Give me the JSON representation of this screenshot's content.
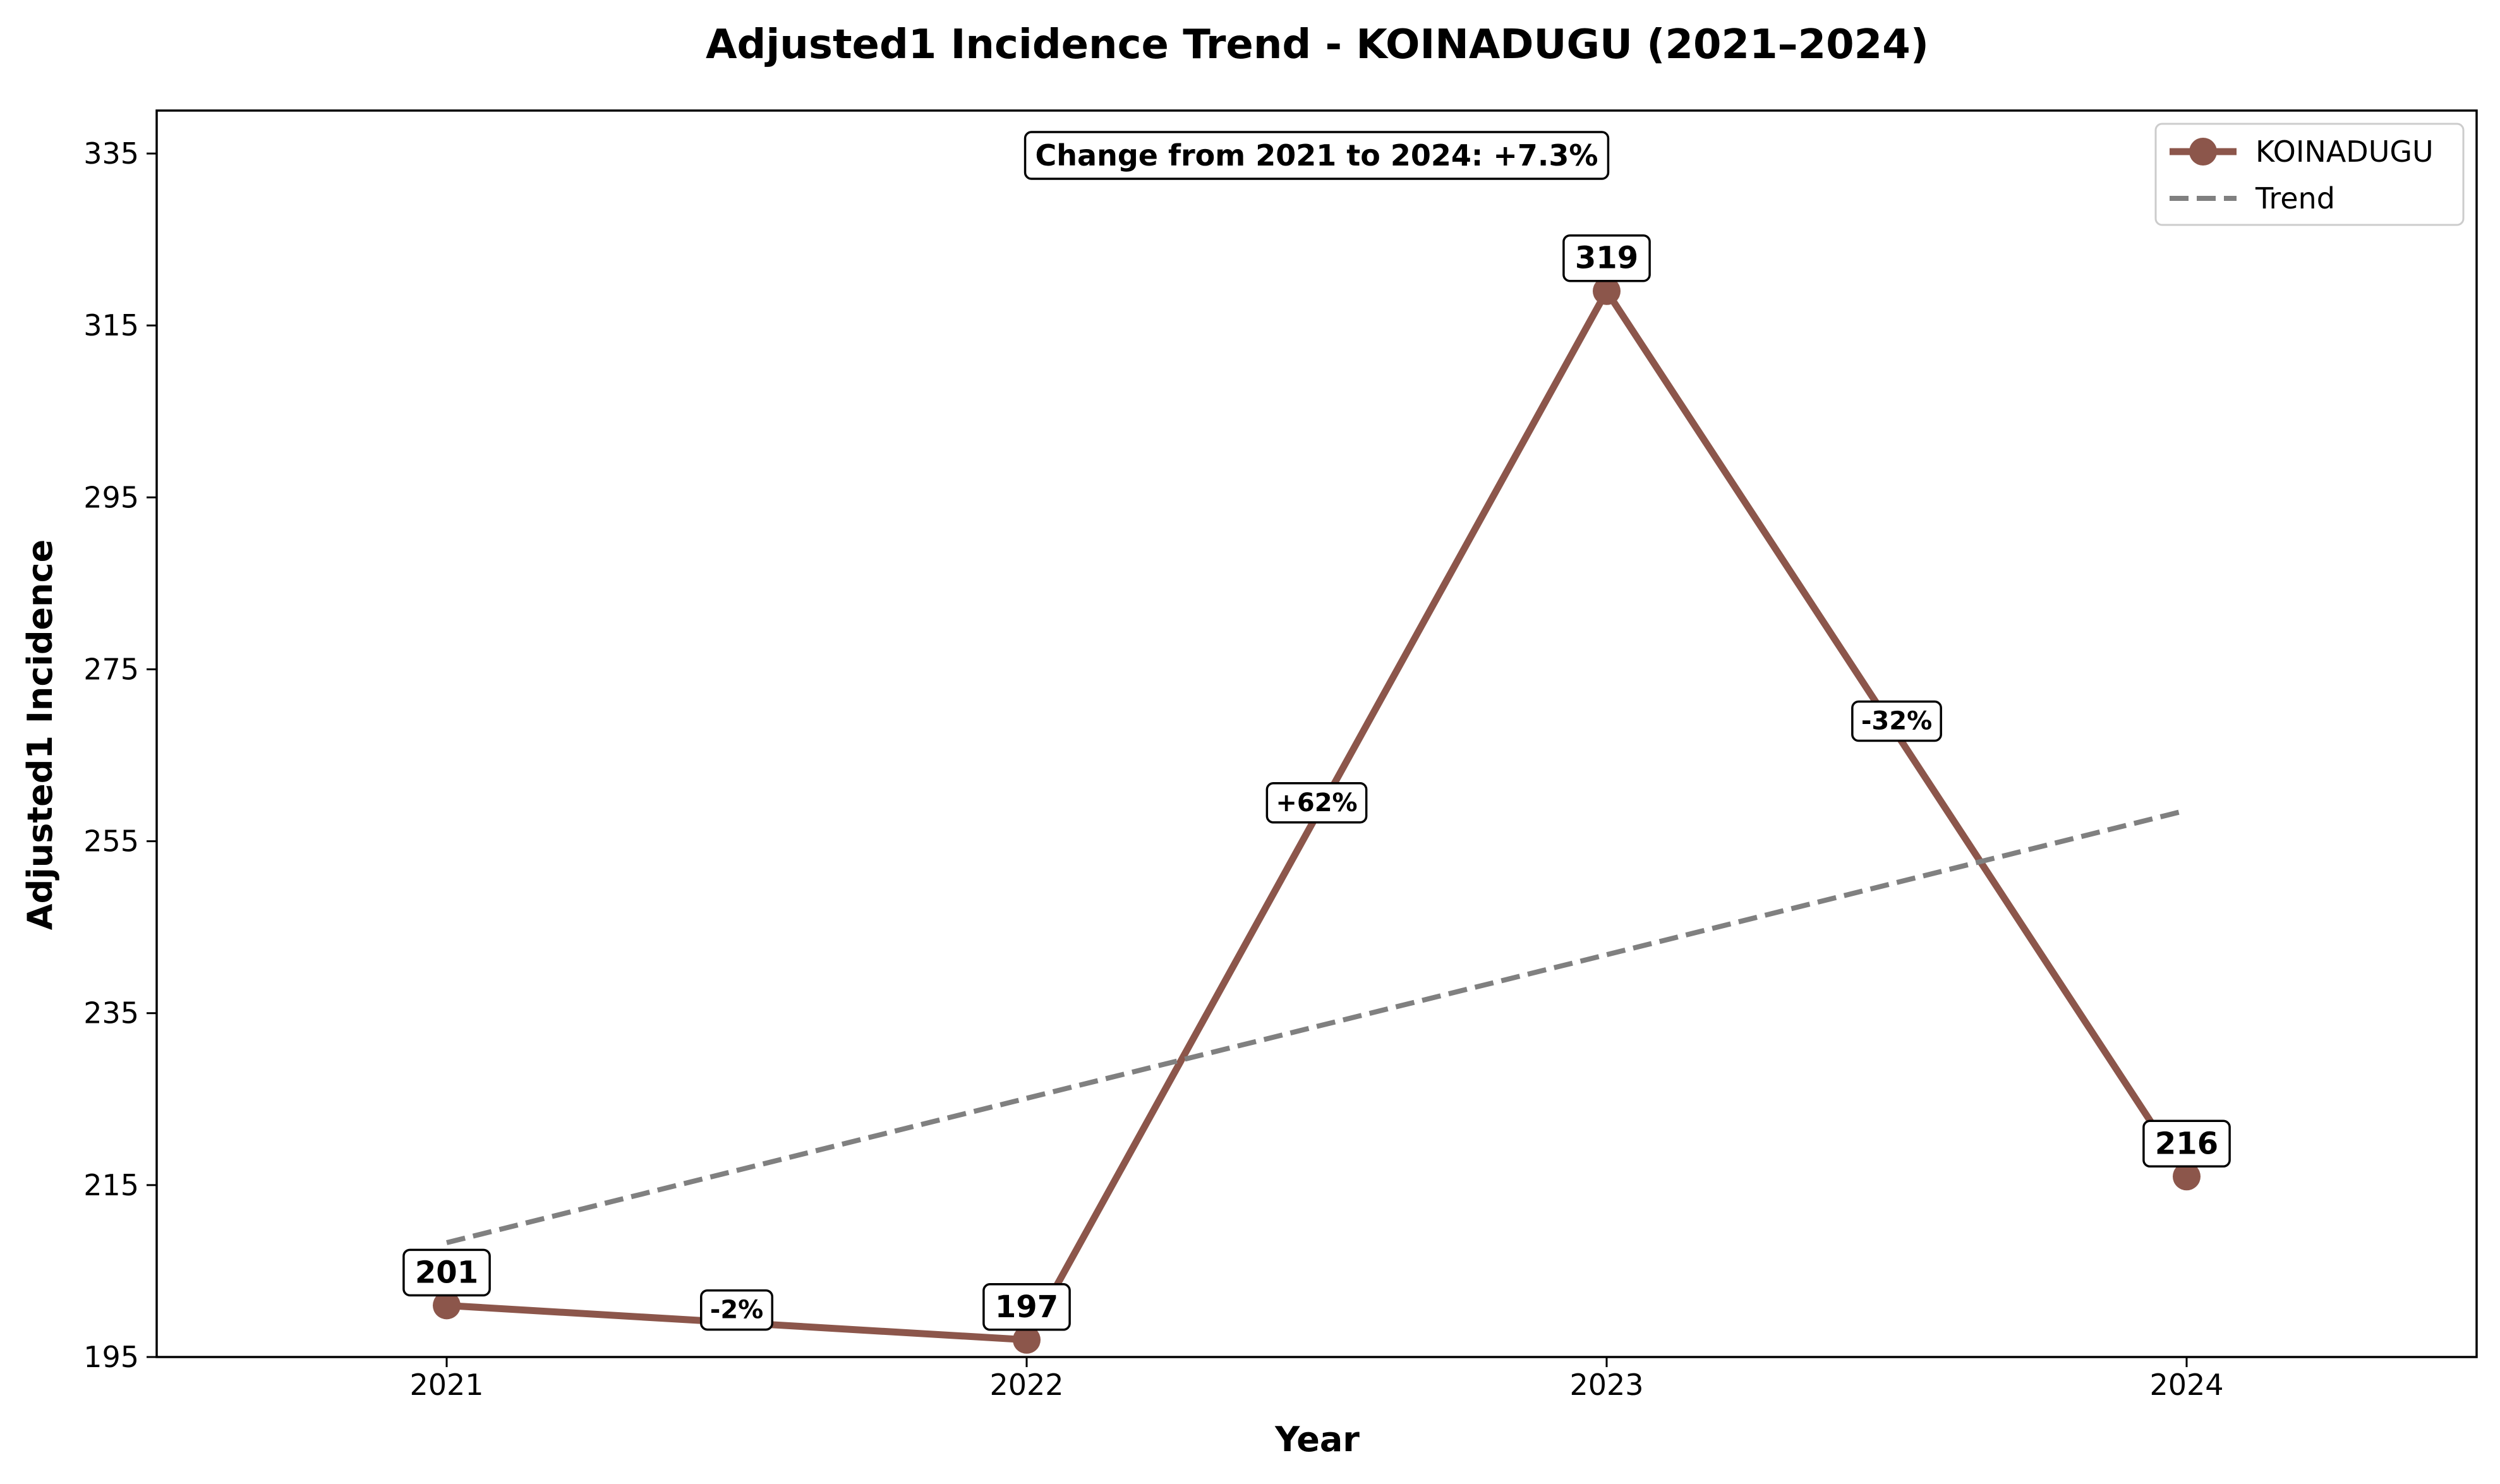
{
  "chart_data": {
    "type": "line",
    "title": "Adjusted1 Incidence Trend - KOINADUGU (2021–2024)",
    "xlabel": "Year",
    "ylabel": "Adjusted1 Incidence",
    "x": [
      "2021",
      "2022",
      "2023",
      "2024"
    ],
    "ylim": [
      195,
      340
    ],
    "yticks": [
      195,
      215,
      235,
      255,
      275,
      295,
      315,
      335
    ],
    "grid": false,
    "legend_position": "top-right",
    "series": [
      {
        "name": "KOINADUGU",
        "values": [
          201,
          197,
          319,
          216
        ],
        "color": "#8c564b",
        "style": "solid",
        "marker": "circle",
        "data_labels": [
          "201",
          "197",
          "319",
          "216"
        ]
      },
      {
        "name": "Trend",
        "values": [
          208.3,
          225.1,
          241.8,
          258.6
        ],
        "color": "#808080",
        "style": "dashed"
      }
    ],
    "segment_changes": [
      "-2%",
      "+62%",
      "-32%"
    ],
    "annotation": "Change from 2021 to 2024: +7.3%"
  }
}
